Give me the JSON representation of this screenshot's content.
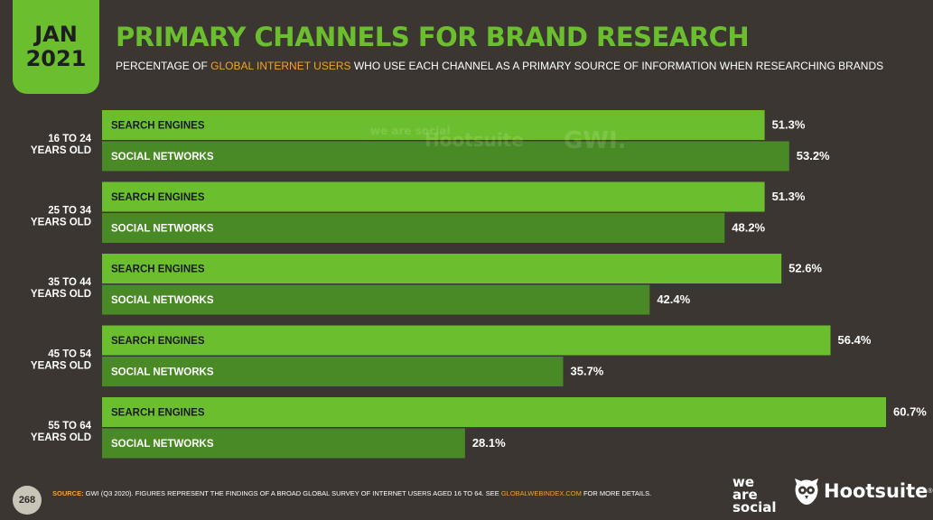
{
  "header": {
    "month": "JAN",
    "year": "2021",
    "title": "PRIMARY CHANNELS FOR BRAND RESEARCH",
    "subtitle_pre": "PERCENTAGE OF ",
    "subtitle_highlight": "GLOBAL INTERNET USERS",
    "subtitle_post": " WHO USE EACH CHANNEL AS A PRIMARY SOURCE OF INFORMATION WHEN RESEARCHING BRANDS"
  },
  "watermark": {
    "brand1": "we are social",
    "brand2": "Hootsuite",
    "brand3": "GWI."
  },
  "chart_data": {
    "type": "bar",
    "orientation": "horizontal",
    "categories": [
      "16 TO 24 YEARS OLD",
      "25 TO 34 YEARS OLD",
      "35 TO 44 YEARS OLD",
      "45 TO 54 YEARS OLD",
      "55 TO 64 YEARS OLD"
    ],
    "series": [
      {
        "name": "SEARCH ENGINES",
        "values": [
          51.3,
          51.3,
          52.6,
          56.4,
          60.7
        ],
        "labels": [
          "51.3%",
          "51.3%",
          "52.6%",
          "56.4%",
          "60.7%"
        ],
        "color": "#6bbf2f"
      },
      {
        "name": "SOCIAL NETWORKS",
        "values": [
          53.2,
          48.2,
          42.4,
          35.7,
          28.1
        ],
        "labels": [
          "53.2%",
          "48.2%",
          "42.4%",
          "35.7%",
          "28.1%"
        ],
        "color": "#4a8a26"
      }
    ],
    "xlim": [
      0,
      100
    ]
  },
  "footer": {
    "page_number": "268",
    "source_label": "SOURCE:",
    "source_text": " GWI (Q3 2020). FIGURES REPRESENT THE FINDINGS OF A BROAD GLOBAL SURVEY OF INTERNET USERS AGED 16 TO 64. SEE ",
    "source_link": "GLOBALWEBINDEX.COM",
    "source_end": " FOR MORE DETAILS.",
    "logo_was": [
      "we",
      "are",
      "social"
    ],
    "logo_hootsuite": "Hootsuite",
    "logo_hootsuite_mark": "®"
  },
  "colors": {
    "background": "#3b3631",
    "accent": "#6bbf2f",
    "bar_dark": "#4a8a26",
    "highlight": "#f2a32b"
  }
}
